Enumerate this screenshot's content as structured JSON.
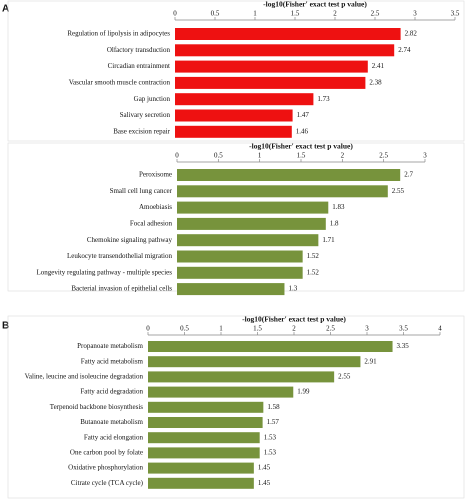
{
  "panel_labels": [
    "A",
    "B"
  ],
  "chart_data": [
    {
      "type": "barh",
      "title": "-log10(Fisher' exact test p value)",
      "color": "#ee1111",
      "categories": [
        "Regulation of lipolysis in adipocytes",
        "Olfactory transduction",
        "Circadian entrainment",
        "Vascular smooth muscle contraction",
        "Gap junction",
        "Salivary secretion",
        "Base excision repair"
      ],
      "values": [
        2.82,
        2.74,
        2.41,
        2.38,
        1.73,
        1.47,
        1.46
      ],
      "xlim": [
        0,
        3.5
      ],
      "xticks": [
        0,
        0.5,
        1,
        1.5,
        2,
        2.5,
        3,
        3.5
      ]
    },
    {
      "type": "barh",
      "title": "-log10(Fisher' exact test p value)",
      "color": "#77933c",
      "categories": [
        "Peroxisome",
        "Small cell lung cancer",
        "Amoebiasis",
        "Focal adhesion",
        "Chemokine signaling pathway",
        "Leukocyte transendothelial migration",
        "Longevity regulating pathway - multiple species",
        "Bacterial invasion of epithelial cells"
      ],
      "values": [
        2.7,
        2.55,
        1.83,
        1.8,
        1.71,
        1.52,
        1.52,
        1.3
      ],
      "xlim": [
        0,
        3
      ],
      "xticks": [
        0,
        0.5,
        1,
        1.5,
        2,
        2.5,
        3
      ]
    },
    {
      "type": "barh",
      "title": "-log10(Fisher' exact test p value)",
      "color": "#77933c",
      "categories": [
        "Propanoate metabolism",
        "Fatty acid metabolism",
        "Valine, leucine and isoleucine degradation",
        "Fatty acid degradation",
        "Terpenoid backbone biosynthesis",
        "Butanoate metabolism",
        "Fatty acid elongation",
        "One carbon pool by folate",
        "Oxidative phosphorylation",
        "Citrate cycle (TCA cycle)"
      ],
      "values": [
        3.35,
        2.91,
        2.55,
        1.99,
        1.58,
        1.57,
        1.53,
        1.53,
        1.45,
        1.45
      ],
      "xlim": [
        0,
        4
      ],
      "xticks": [
        0,
        0.5,
        1,
        1.5,
        2,
        2.5,
        3,
        3.5,
        4
      ]
    }
  ]
}
